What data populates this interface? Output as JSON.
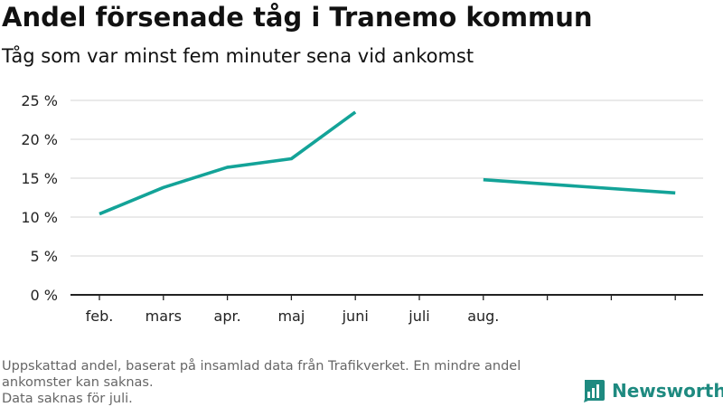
{
  "header": {
    "title": "Andel försenade tåg i Tranemo kommun",
    "subtitle": "Tåg som var minst fem minuter sena vid ankomst"
  },
  "footer": {
    "note_line1": "Uppskattad andel, baserat på insamlad data från Trafikverket. En mindre andel ankomster kan saknas.",
    "note_line2": "Data saknas för juli.",
    "brand": "Newsworthy",
    "brand_icon": "bar-chart-icon"
  },
  "colors": {
    "line": "#13a398",
    "grid": "#dddddd",
    "axis": "#222222",
    "brand": "#1e8a80"
  },
  "chart_data": {
    "type": "line",
    "title": "Andel försenade tåg i Tranemo kommun",
    "xlabel": "",
    "ylabel": "",
    "categories": [
      "feb.",
      "mars",
      "apr.",
      "maj",
      "juni",
      "juli",
      "aug.",
      "",
      "",
      ""
    ],
    "series": [
      {
        "name": "Andel försenade tåg",
        "values": [
          10.4,
          13.8,
          16.4,
          17.5,
          23.5,
          null,
          14.8,
          null,
          null,
          13.1
        ]
      }
    ],
    "yticks": [
      0,
      5,
      10,
      15,
      20,
      25
    ],
    "ytick_labels": [
      "0 %",
      "5 %",
      "10 %",
      "15 %",
      "20 %",
      "25 %"
    ],
    "ylim": [
      0,
      25
    ],
    "grid": true
  }
}
